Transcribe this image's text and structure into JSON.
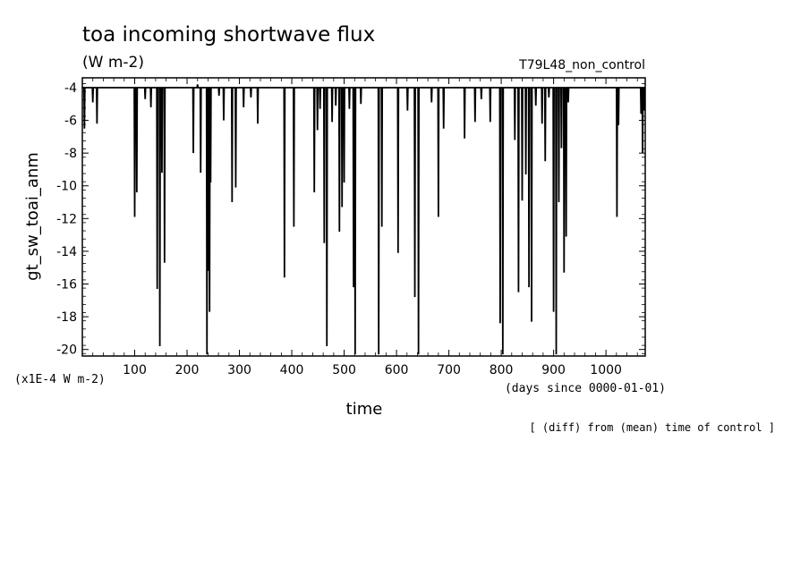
{
  "chart_data": {
    "type": "line",
    "title": "toa incoming shortwave flux",
    "units": "(W m-2)",
    "run_label": "T79L48_non_control",
    "ylabel": "gt_sw_toai_anm",
    "xlabel": "time",
    "y_scale_note": "(x1E-4 W m-2)",
    "x_units_note": "(days since 0000-01-01)",
    "footnote": "[ (diff) from (mean) time of control ]",
    "xlim": [
      0,
      1075
    ],
    "ylim": [
      -20.4,
      -3.4
    ],
    "x_ticks": [
      "100",
      "200",
      "300",
      "400",
      "500",
      "600",
      "700",
      "800",
      "900",
      "1000"
    ],
    "y_ticks": [
      "-4",
      "-6",
      "-8",
      "-10",
      "-12",
      "-14",
      "-16",
      "-18",
      "-20"
    ],
    "grid": false,
    "baseline": -4,
    "dips": [
      [
        4,
        -6.5
      ],
      [
        20,
        -4.9
      ],
      [
        28,
        -6.2
      ],
      [
        100,
        -11.9
      ],
      [
        104,
        -10.4
      ],
      [
        120,
        -4.7
      ],
      [
        131,
        -5.2
      ],
      [
        143,
        -16.3
      ],
      [
        148,
        -19.8
      ],
      [
        152,
        -9.2
      ],
      [
        157,
        -14.7
      ],
      [
        212,
        -8.0
      ],
      [
        220,
        -3.8
      ],
      [
        226,
        -9.2
      ],
      [
        238,
        -20.3
      ],
      [
        241,
        -15.2
      ],
      [
        243,
        -17.7
      ],
      [
        245,
        -9.8
      ],
      [
        261,
        -4.5
      ],
      [
        270,
        -6.0
      ],
      [
        286,
        -11.0
      ],
      [
        293,
        -10.1
      ],
      [
        308,
        -5.2
      ],
      [
        322,
        -4.6
      ],
      [
        335,
        -6.2
      ],
      [
        386,
        -15.6
      ],
      [
        404,
        -12.5
      ],
      [
        443,
        -10.4
      ],
      [
        449,
        -6.6
      ],
      [
        454,
        -5.3
      ],
      [
        462,
        -13.5
      ],
      [
        467,
        -19.8
      ],
      [
        477,
        -6.1
      ],
      [
        484,
        -5.1
      ],
      [
        491,
        -12.8
      ],
      [
        496,
        -11.3
      ],
      [
        500,
        -9.8
      ],
      [
        510,
        -5.3
      ],
      [
        518,
        -16.2
      ],
      [
        521,
        -20.3
      ],
      [
        532,
        -5.0
      ],
      [
        566,
        -20.3
      ],
      [
        572,
        -12.5
      ],
      [
        603,
        -14.1
      ],
      [
        621,
        -5.4
      ],
      [
        635,
        -16.8
      ],
      [
        642,
        -20.3
      ],
      [
        667,
        -4.9
      ],
      [
        680,
        -11.9
      ],
      [
        690,
        -6.5
      ],
      [
        730,
        -7.1
      ],
      [
        750,
        -6.1
      ],
      [
        762,
        -4.7
      ],
      [
        779,
        -6.1
      ],
      [
        798,
        -18.4
      ],
      [
        803,
        -20.3
      ],
      [
        826,
        -7.2
      ],
      [
        833,
        -16.5
      ],
      [
        840,
        -10.9
      ],
      [
        847,
        -9.3
      ],
      [
        853,
        -16.2
      ],
      [
        858,
        -18.3
      ],
      [
        866,
        -5.1
      ],
      [
        878,
        -6.2
      ],
      [
        884,
        -8.5
      ],
      [
        891,
        -4.6
      ],
      [
        900,
        -17.7
      ],
      [
        905,
        -20.3
      ],
      [
        910,
        -11.0
      ],
      [
        915,
        -7.7
      ],
      [
        920,
        -15.3
      ],
      [
        924,
        -13.1
      ],
      [
        928,
        -4.9
      ],
      [
        933,
        -4.0
      ],
      [
        1021,
        -11.9
      ],
      [
        1024,
        -6.3
      ],
      [
        1067,
        -5.6
      ],
      [
        1070,
        -8.0
      ],
      [
        1073,
        -5.4
      ]
    ]
  }
}
